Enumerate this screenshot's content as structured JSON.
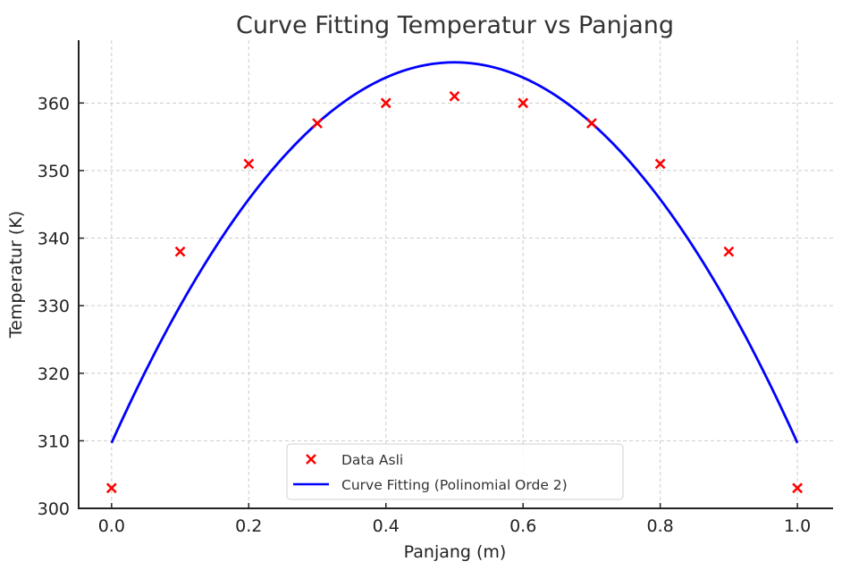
{
  "chart_data": {
    "type": "scatter",
    "title": "Curve Fitting Temperatur vs Panjang",
    "xlabel": "Panjang (m)",
    "ylabel": "Temperatur (K)",
    "xlim": [
      -0.048,
      1.052
    ],
    "ylim": [
      300,
      369.3
    ],
    "grid": true,
    "legend_position": "lower-center",
    "x_ticks": [
      0.0,
      0.2,
      0.4,
      0.6,
      0.8,
      1.0
    ],
    "x_tick_labels": [
      "0.0",
      "0.2",
      "0.4",
      "0.6",
      "0.8",
      "1.0"
    ],
    "y_ticks": [
      300,
      310,
      320,
      330,
      340,
      350,
      360
    ],
    "y_tick_labels": [
      "300",
      "310",
      "320",
      "330",
      "340",
      "350",
      "360"
    ],
    "series": [
      {
        "name": "Data Asli",
        "kind": "scatter",
        "marker": "x",
        "color": "#ff0000",
        "x": [
          0.0,
          0.1,
          0.2,
          0.3,
          0.4,
          0.5,
          0.6,
          0.7,
          0.8,
          0.9,
          1.0
        ],
        "y": [
          303,
          338,
          351,
          357,
          360,
          361,
          360,
          357,
          351,
          338,
          303
        ]
      },
      {
        "name": "Curve Fitting (Polinomial Orde 2)",
        "kind": "line",
        "color": "#0000ff",
        "polynomial": {
          "a": -225.3,
          "b": 225.3,
          "c": 309.7
        },
        "x_range": [
          0.0,
          1.0
        ]
      }
    ]
  }
}
